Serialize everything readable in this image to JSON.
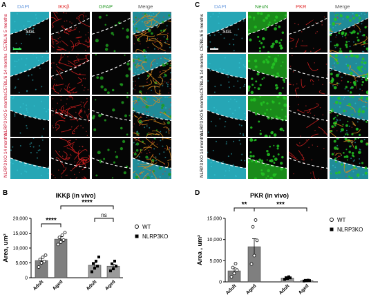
{
  "panelA": {
    "letter": "A",
    "headers": [
      {
        "text": "DAPI",
        "color": "#6f9fe0"
      },
      {
        "text": "IKKβ",
        "color": "#e23030"
      },
      {
        "text": "GFAP",
        "color": "#2f9e2f"
      },
      {
        "text": "Merge",
        "color": "#555555"
      }
    ],
    "rows": [
      {
        "label": "C57BL/6 5 months",
        "color": "#c8102e"
      },
      {
        "label": "C57BL/6 14 months",
        "color": "#c8102e"
      },
      {
        "label": "NLRP3 KO 5 months",
        "color": "#c8102e"
      },
      {
        "label": "NLRP3 KO 14 months",
        "color": "#c8102e"
      }
    ],
    "sgl": "SGL"
  },
  "panelC": {
    "letter": "C",
    "headers": [
      {
        "text": "DAPI",
        "color": "#6f9fe0"
      },
      {
        "text": "NeuN",
        "color": "#2f9e2f"
      },
      {
        "text": "PKR",
        "color": "#e23030"
      },
      {
        "text": "Merge",
        "color": "#555555"
      }
    ],
    "rows": [
      {
        "label": "C57BL/6 5 months",
        "color": "#000000"
      },
      {
        "label": "C57BL/6 14 months",
        "color": "#000000"
      },
      {
        "label": "NLRP3 KO 5 months",
        "color": "#000000"
      },
      {
        "label": "NLRP3 KO 14 months",
        "color": "#000000"
      }
    ],
    "sgl": "SGL"
  },
  "chart_data": [
    {
      "panel": "B",
      "type": "bar",
      "title": "IKKβ (in vivo)",
      "ylabel": "Area, um²",
      "ylim": [
        0,
        20000
      ],
      "yticks": [
        "0",
        "5,000",
        "10,000",
        "15,000",
        "20,000"
      ],
      "categories": [
        "Adult",
        "Aged",
        "Adult",
        "Aged"
      ],
      "legend": [
        {
          "name": "WT",
          "marker": "open-circle"
        },
        {
          "name": "NLRP3KO",
          "marker": "filled-square"
        }
      ],
      "legend_position": "right",
      "bars": [
        {
          "value": 5800,
          "err": 700,
          "group": "WT",
          "points": [
            3600,
            5000,
            5500,
            6200,
            6900,
            7600
          ]
        },
        {
          "value": 13000,
          "err": 800,
          "group": "WT",
          "points": [
            11200,
            12000,
            12700,
            13600,
            14300,
            15200
          ]
        },
        {
          "value": 4200,
          "err": 900,
          "group": "NLRP3KO",
          "points": [
            2000,
            3200,
            3900,
            4800,
            5600,
            7000
          ]
        },
        {
          "value": 3900,
          "err": 600,
          "group": "NLRP3KO",
          "points": [
            2300,
            3000,
            3900,
            4700,
            5600
          ]
        }
      ],
      "annotations": [
        {
          "text": "****",
          "from": 0,
          "to": 1
        },
        {
          "text": "****",
          "from": 1,
          "to": 3
        },
        {
          "text": "ns",
          "from": 2,
          "to": 3
        }
      ]
    },
    {
      "panel": "D",
      "type": "bar",
      "title": "PKR (in vivo)",
      "ylabel": "Area , um²",
      "ylim": [
        0,
        15000
      ],
      "yticks": [
        "0",
        "5,000",
        "10,000",
        "15,000"
      ],
      "categories": [
        "Adult",
        "Aged",
        "Adult",
        "Aged"
      ],
      "legend": [
        {
          "name": "WT",
          "marker": "open-circle"
        },
        {
          "name": "NLRP3KO",
          "marker": "filled-square"
        }
      ],
      "legend_position": "right",
      "bars": [
        {
          "value": 2600,
          "err": 700,
          "group": "WT",
          "points": [
            1200,
            2000,
            2800,
            3400,
            4300
          ]
        },
        {
          "value": 8300,
          "err": 1900,
          "group": "WT",
          "points": [
            4200,
            6200,
            9800,
            13000,
            14600
          ]
        },
        {
          "value": 900,
          "err": 150,
          "group": "NLRP3KO",
          "points": [
            600,
            800,
            950,
            1000,
            1200
          ]
        },
        {
          "value": 300,
          "err": 60,
          "group": "NLRP3KO",
          "points": [
            200,
            250,
            300,
            350,
            400
          ]
        }
      ],
      "annotations": [
        {
          "text": "**",
          "from": 0,
          "to": 1
        },
        {
          "text": "***",
          "from": 1,
          "to": 3
        }
      ]
    }
  ]
}
